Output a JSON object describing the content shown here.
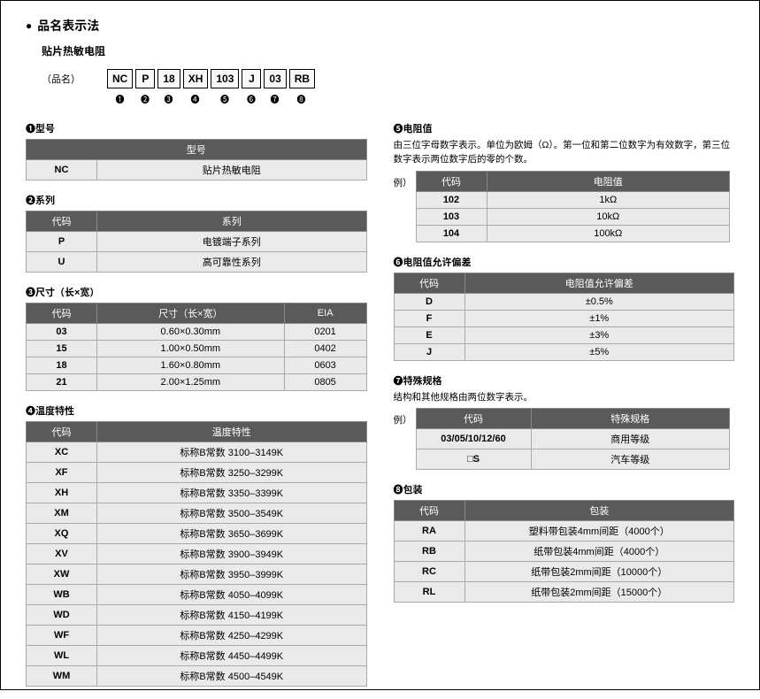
{
  "title": "品名表示法",
  "subtitle": "贴片热敏电阻",
  "partname_label": "（品名）",
  "boxes": [
    "NC",
    "P",
    "18",
    "XH",
    "103",
    "J",
    "03",
    "RB"
  ],
  "nums": [
    "❶",
    "❷",
    "❸",
    "❹",
    "❺",
    "❻",
    "❼",
    "❽"
  ],
  "sec1": {
    "num": "❶",
    "title": "型号",
    "headers": [
      "型号",
      ""
    ],
    "rows": [
      [
        "NC",
        "贴片热敏电阻"
      ]
    ]
  },
  "sec2": {
    "num": "❷",
    "title": "系列",
    "headers": [
      "代码",
      "系列"
    ],
    "rows": [
      [
        "P",
        "电镀端子系列"
      ],
      [
        "U",
        "高可靠性系列"
      ]
    ]
  },
  "sec3": {
    "num": "❸",
    "title": "尺寸（长×宽）",
    "headers": [
      "代码",
      "尺寸（长×宽）",
      "EIA"
    ],
    "rows": [
      [
        "03",
        "0.60×0.30mm",
        "0201"
      ],
      [
        "15",
        "1.00×0.50mm",
        "0402"
      ],
      [
        "18",
        "1.60×0.80mm",
        "0603"
      ],
      [
        "21",
        "2.00×1.25mm",
        "0805"
      ]
    ]
  },
  "sec4": {
    "num": "❹",
    "title": "温度特性",
    "headers": [
      "代码",
      "温度特性"
    ],
    "rows": [
      [
        "XC",
        "标称B常数 3100–3149K"
      ],
      [
        "XF",
        "标称B常数 3250–3299K"
      ],
      [
        "XH",
        "标称B常数 3350–3399K"
      ],
      [
        "XM",
        "标称B常数 3500–3549K"
      ],
      [
        "XQ",
        "标称B常数 3650–3699K"
      ],
      [
        "XV",
        "标称B常数 3900–3949K"
      ],
      [
        "XW",
        "标称B常数 3950–3999K"
      ],
      [
        "WB",
        "标称B常数 4050–4099K"
      ],
      [
        "WD",
        "标称B常数 4150–4199K"
      ],
      [
        "WF",
        "标称B常数 4250–4299K"
      ],
      [
        "WL",
        "标称B常数 4450–4499K"
      ],
      [
        "WM",
        "标称B常数 4500–4549K"
      ]
    ]
  },
  "sec5": {
    "num": "❺",
    "title": "电阻值",
    "note": "由三位字母数字表示。单位为欧姆（Ω）。第一位和第二位数字为有效数字，第三位数字表示两位数字后的零的个数。",
    "ex": "例）",
    "headers": [
      "代码",
      "电阻值"
    ],
    "rows": [
      [
        "102",
        "1kΩ"
      ],
      [
        "103",
        "10kΩ"
      ],
      [
        "104",
        "100kΩ"
      ]
    ]
  },
  "sec6": {
    "num": "❻",
    "title": "电阻值允许偏差",
    "headers": [
      "代码",
      "电阻值允许偏差"
    ],
    "rows": [
      [
        "D",
        "±0.5%"
      ],
      [
        "F",
        "±1%"
      ],
      [
        "E",
        "±3%"
      ],
      [
        "J",
        "±5%"
      ]
    ]
  },
  "sec7": {
    "num": "❼",
    "title": "特殊规格",
    "note": "结构和其他规格由两位数字表示。",
    "ex": "例）",
    "headers": [
      "代码",
      "特殊规格"
    ],
    "rows": [
      [
        "03/05/10/12/60",
        "商用等级"
      ],
      [
        "□S",
        "汽车等级"
      ]
    ]
  },
  "sec8": {
    "num": "❽",
    "title": "包装",
    "headers": [
      "代码",
      "包装"
    ],
    "rows": [
      [
        "RA",
        "塑料带包装4mm间距（4000个）"
      ],
      [
        "RB",
        "纸带包装4mm间距（4000个）"
      ],
      [
        "RC",
        "纸带包装2mm间距（10000个）"
      ],
      [
        "RL",
        "纸带包装2mm间距（15000个）"
      ]
    ]
  }
}
